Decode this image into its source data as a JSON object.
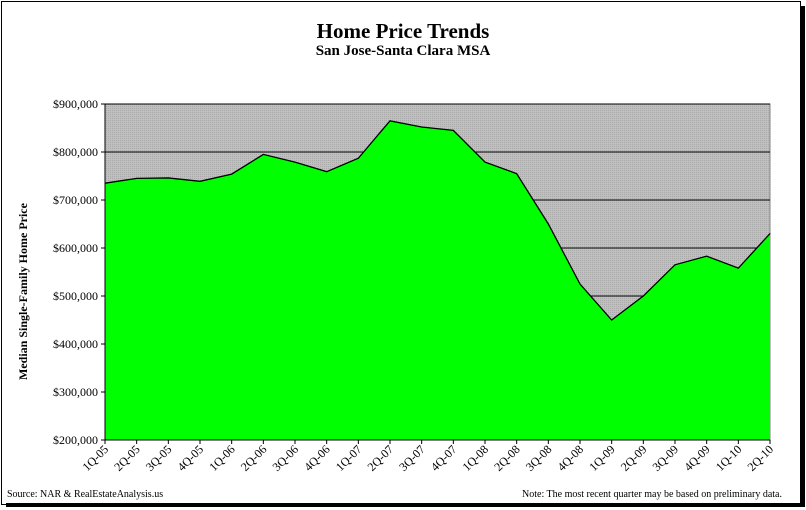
{
  "title": "Home Price Trends",
  "subtitle": "San Jose-Santa Clara MSA",
  "source": "Source: NAR & RealEstateAnalysis.us",
  "note": "Note: The most recent quarter may be based on preliminary data.",
  "colors": {
    "area": "#00ff00",
    "plot_bg": "#c0c0c0",
    "line": "#000000"
  },
  "chart_data": {
    "type": "area",
    "title": "Home Price Trends",
    "subtitle": "San Jose-Santa Clara MSA",
    "ylabel": "Median Single-Family Home Price",
    "xlabel": "",
    "ylim": [
      200000,
      900000
    ],
    "y_ticks": [
      {
        "value": 200000,
        "label": "$200,000"
      },
      {
        "value": 300000,
        "label": "$300,000"
      },
      {
        "value": 400000,
        "label": "$400,000"
      },
      {
        "value": 500000,
        "label": "$500,000"
      },
      {
        "value": 600000,
        "label": "$600,000"
      },
      {
        "value": 700000,
        "label": "$700,000"
      },
      {
        "value": 800000,
        "label": "$800,000"
      },
      {
        "value": 900000,
        "label": "$900,000"
      }
    ],
    "grid": true,
    "categories": [
      "1Q-05",
      "2Q-05",
      "3Q-05",
      "4Q-05",
      "1Q-06",
      "2Q-06",
      "3Q-06",
      "4Q-06",
      "1Q-07",
      "2Q-07",
      "3Q-07",
      "4Q-07",
      "1Q-08",
      "2Q-08",
      "3Q-08",
      "4Q-08",
      "1Q-09",
      "2Q-09",
      "3Q-09",
      "4Q-09",
      "1Q-10",
      "2Q-10"
    ],
    "values": [
      735000,
      745000,
      746000,
      739000,
      754000,
      795000,
      779000,
      759000,
      787000,
      865000,
      852000,
      845000,
      779000,
      755000,
      650000,
      525000,
      450000,
      500000,
      565000,
      583000,
      558000,
      630000
    ]
  }
}
